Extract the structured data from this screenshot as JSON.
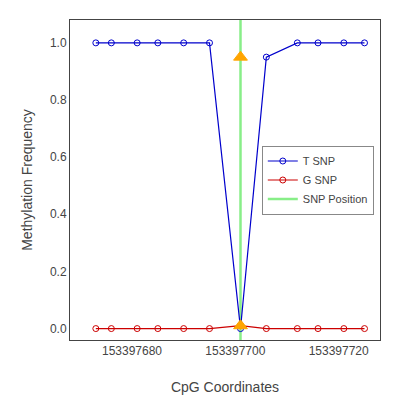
{
  "chart_data": {
    "type": "line",
    "xlabel": "CpG Coordinates",
    "ylabel": "Methylation Frequency",
    "xlim": [
      153397668,
      153397728
    ],
    "ylim": [
      -0.04,
      1.08
    ],
    "xticks": [
      153397680,
      153397700,
      153397720
    ],
    "yticks": [
      {
        "value": 0.0,
        "label": "0.0"
      },
      0.2,
      0.4,
      0.6,
      0.8,
      {
        "value": 1.0,
        "label": "1.0"
      }
    ],
    "grid": false,
    "legend": "center right",
    "series": [
      {
        "name": "SNP Position",
        "type": "vline",
        "color": "#88EE88",
        "line_style": "solid",
        "x": [
          153397701
        ]
      },
      {
        "name": "T SNP",
        "type": "line",
        "color": "#0000CC",
        "marker": "circle-open",
        "line_style": "solid",
        "x": [
          153397673,
          153397676,
          153397681,
          153397685,
          153397690,
          153397695,
          153397701,
          153397706,
          153397712,
          153397716,
          153397721,
          153397725
        ],
        "values": [
          1.0,
          1.0,
          1.0,
          1.0,
          1.0,
          1.0,
          0.0,
          0.95,
          1.0,
          1.0,
          1.0,
          1.0
        ]
      },
      {
        "name": "G SNP",
        "type": "line",
        "color": "#CC0000",
        "marker": "circle-open",
        "line_style": "solid",
        "x": [
          153397673,
          153397676,
          153397681,
          153397685,
          153397690,
          153397695,
          153397701,
          153397706,
          153397712,
          153397716,
          153397721,
          153397725
        ],
        "values": [
          0.0,
          0.0,
          0.0,
          0.0,
          0.0,
          0.0,
          0.01,
          0.0,
          0.0,
          0.0,
          0.0,
          0.0
        ]
      },
      {
        "type": "scatter",
        "color": "#FFA500",
        "marker": "triangle-up",
        "x": [
          153397701,
          153397701
        ],
        "values": [
          0.95,
          0.01
        ]
      }
    ]
  }
}
